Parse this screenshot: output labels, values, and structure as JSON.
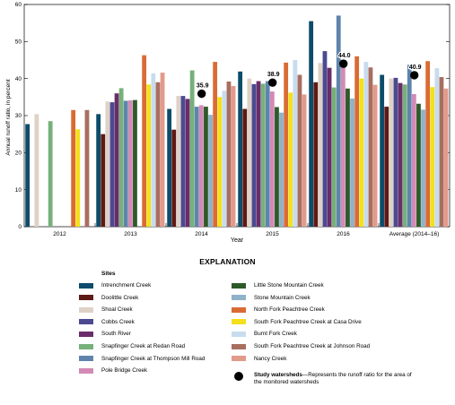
{
  "chart_data": {
    "type": "bar",
    "ylabel": "Annual runoff ratio, in percent",
    "xlabel": "Year",
    "ylim": [
      0,
      60
    ],
    "yticks": [
      0,
      10,
      20,
      30,
      40,
      50,
      60
    ],
    "grid": false,
    "categories": [
      "2012",
      "2013",
      "2014",
      "2015",
      "2016",
      "Average (2014–16)"
    ],
    "series": [
      {
        "name": "Intrenchment Creek",
        "color": "#0d4c6a",
        "values": [
          27.7,
          30.4,
          31.8,
          41.9,
          55.5,
          41.0
        ]
      },
      {
        "name": "Doolittle Creek",
        "color": "#5e1a14",
        "values": [
          null,
          25.0,
          26.2,
          31.8,
          39.0,
          32.4
        ]
      },
      {
        "name": "Shoal Creek",
        "color": "#ded2c6",
        "values": [
          30.4,
          33.8,
          35.3,
          40.0,
          44.2,
          40.0
        ]
      },
      {
        "name": "Cobbs Creek",
        "color": "#4b4a91",
        "values": [
          null,
          33.6,
          35.3,
          38.5,
          47.4,
          40.2
        ]
      },
      {
        "name": "South River",
        "color": "#6a2d6a",
        "values": [
          null,
          36.0,
          34.5,
          39.3,
          42.9,
          38.8
        ]
      },
      {
        "name": "Snapfinger Creek at Redan Road",
        "color": "#76b07a",
        "values": [
          28.5,
          37.4,
          42.2,
          38.6,
          37.6,
          38.4
        ]
      },
      {
        "name": "Snapfinger Creek at Thompson Mill Road",
        "color": "#5f84ac",
        "values": [
          null,
          34.0,
          32.4,
          39.3,
          57.0,
          43.7
        ]
      },
      {
        "name": "Pole Bridge Creek",
        "color": "#d38ab5",
        "values": [
          null,
          34.1,
          32.8,
          36.5,
          43.7,
          35.8
        ]
      },
      {
        "name": "Little Stone Mountain Creek",
        "color": "#2e5a2a",
        "values": [
          null,
          34.2,
          32.4,
          32.3,
          37.3,
          33.2
        ]
      },
      {
        "name": "Stone Mountain Creek",
        "color": "#8fb2c9",
        "values": [
          null,
          null,
          30.2,
          30.8,
          34.6,
          31.6
        ]
      },
      {
        "name": "North Fork Peachtree Creek",
        "color": "#d96b35",
        "values": [
          31.5,
          46.3,
          44.5,
          44.3,
          46.0,
          44.7
        ]
      },
      {
        "name": "South Fork Peachtree Creek at Casa Drive",
        "color": "#f4e01c",
        "values": [
          26.3,
          38.4,
          35.0,
          36.2,
          40.0,
          37.7
        ]
      },
      {
        "name": "Burnt Fork Creek",
        "color": "#c7dcee",
        "values": [
          null,
          41.4,
          36.7,
          45.0,
          44.5,
          42.8
        ]
      },
      {
        "name": "South Fork Peachtree Creek at Johnson Road",
        "color": "#a86e60",
        "values": [
          31.5,
          39.0,
          39.2,
          41.0,
          43.0,
          40.4
        ]
      },
      {
        "name": "Nancy Creek",
        "color": "#e29a8b",
        "values": [
          null,
          41.6,
          38.0,
          35.7,
          38.3,
          37.3
        ]
      }
    ],
    "study_watersheds": {
      "name": "Study watersheds",
      "points": [
        {
          "category": "2014",
          "value": 35.9,
          "label": "35.9"
        },
        {
          "category": "2015",
          "value": 38.9,
          "label": "38.9"
        },
        {
          "category": "2016",
          "value": 44.0,
          "label": "44.0"
        },
        {
          "category": "Average (2014–16)",
          "value": 40.9,
          "label": "40.9"
        }
      ]
    }
  },
  "legend": {
    "title": "EXPLANATION",
    "sites_title": "Sites",
    "study_title": "Study watersheds",
    "study_desc": "—Represents the runoff ratio for the area of the monitored watersheds"
  }
}
